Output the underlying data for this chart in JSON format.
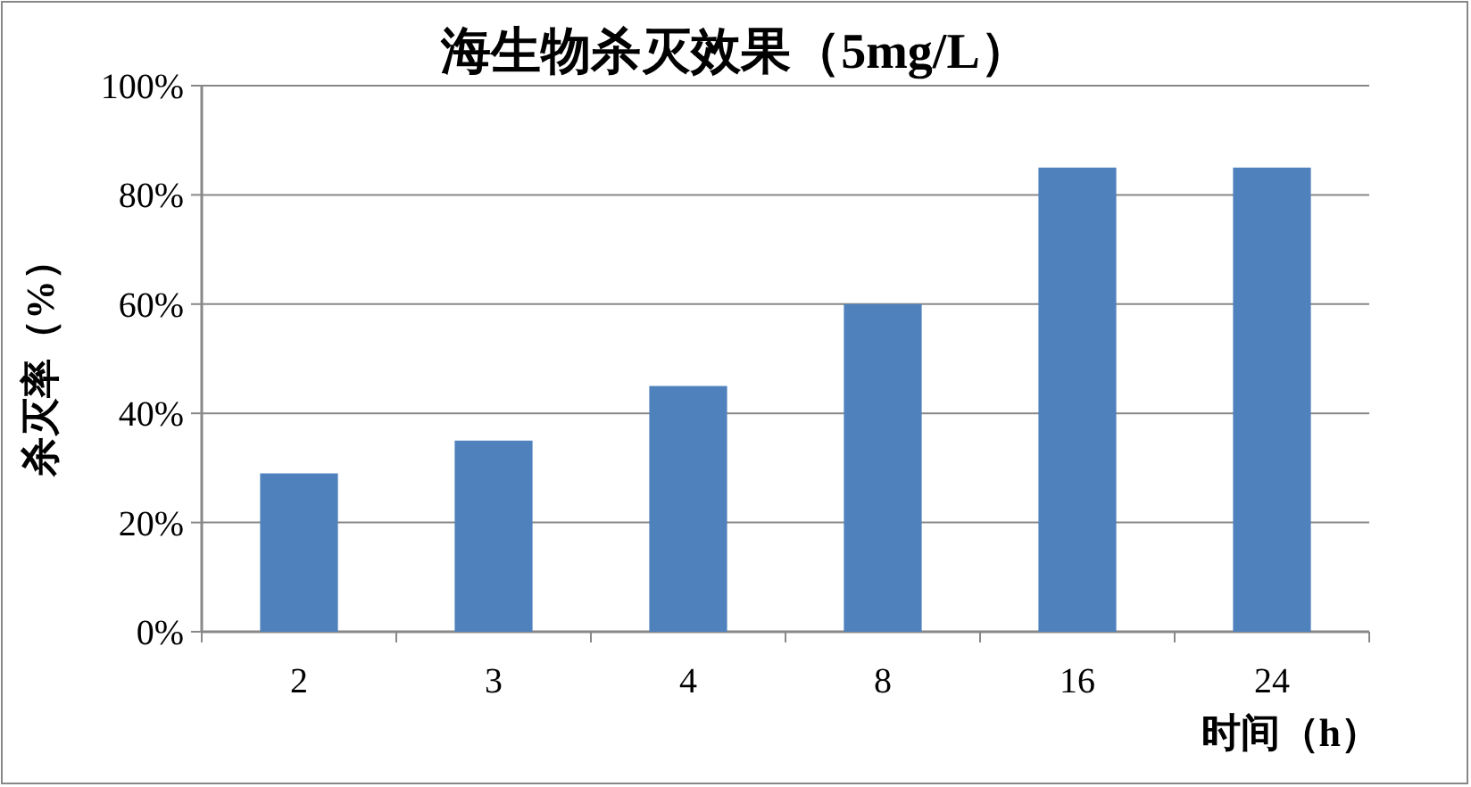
{
  "chart_data": {
    "type": "bar",
    "title": "海生物杀灭效果（5mg/L）",
    "xlabel": "时间（h）",
    "ylabel": "杀灭率（%）",
    "categories": [
      "2",
      "3",
      "4",
      "8",
      "16",
      "24"
    ],
    "values": [
      29,
      35,
      45,
      60,
      85,
      85
    ],
    "color": "#4f81bd",
    "ylim": [
      0,
      100
    ],
    "yticks": [
      {
        "value": 0,
        "label": "0%"
      },
      {
        "value": 20,
        "label": "20%"
      },
      {
        "value": 40,
        "label": "40%"
      },
      {
        "value": 60,
        "label": "60%"
      },
      {
        "value": 80,
        "label": "80%"
      },
      {
        "value": 100,
        "label": "100%"
      }
    ],
    "grid": "y"
  }
}
